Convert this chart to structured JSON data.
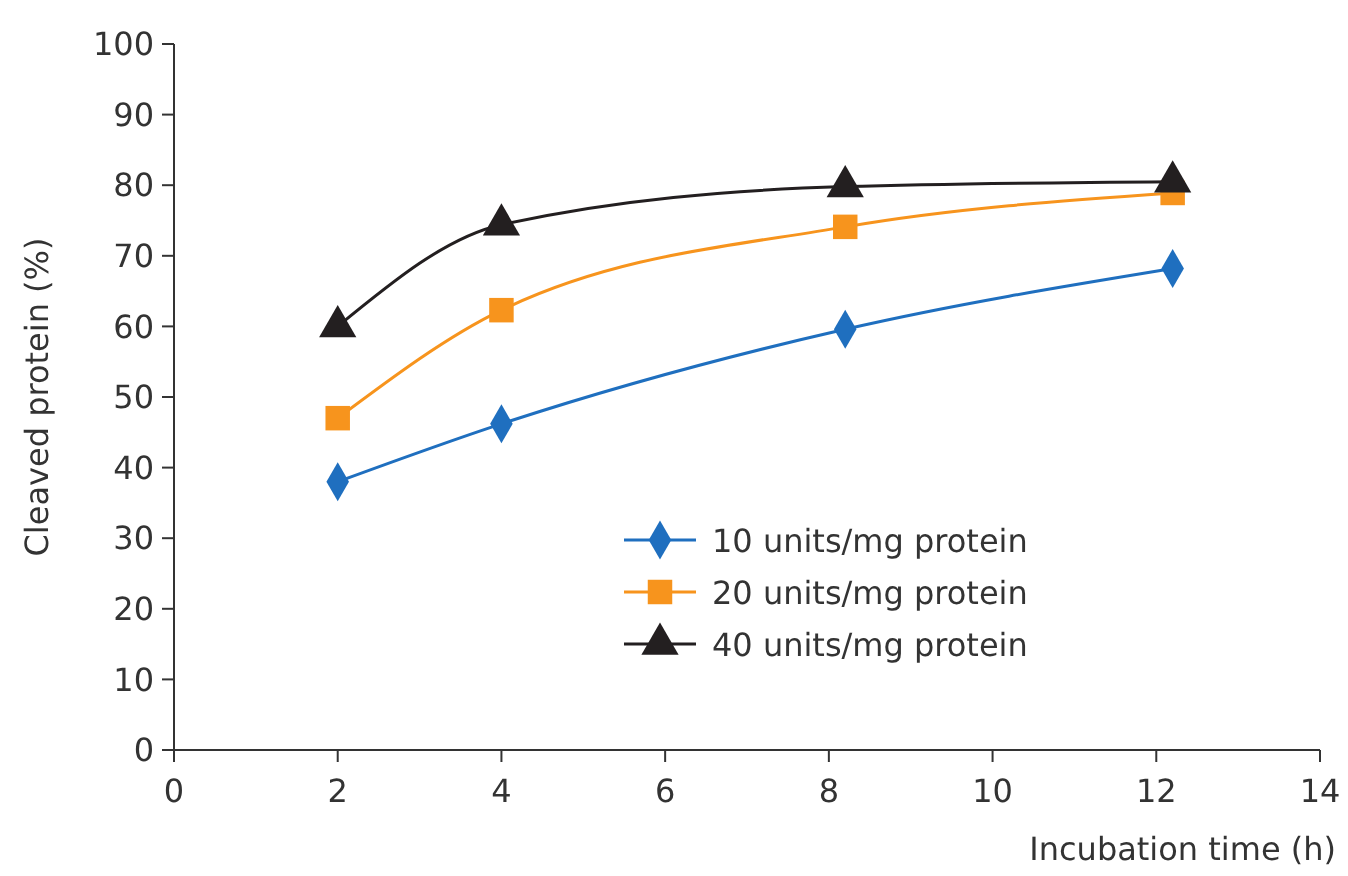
{
  "chart_data": {
    "type": "line",
    "xlabel": "Incubation time (h)",
    "ylabel": "Cleaved protein  (%)",
    "x": [
      2,
      4,
      8.2,
      12.2
    ],
    "series": [
      {
        "name": "10 units/mg protein",
        "color": "#1f6fbf",
        "marker": "diamond",
        "values": [
          38,
          46.2,
          59.6,
          68.2
        ]
      },
      {
        "name": "20 units/mg protein",
        "color": "#f7941d",
        "marker": "square",
        "values": [
          47,
          62.3,
          74.1,
          78.9
        ]
      },
      {
        "name": "40 units/mg protein",
        "color": "#231f20",
        "marker": "triangle",
        "values": [
          60,
          74.4,
          79.8,
          80.5
        ]
      }
    ],
    "xlim": [
      0,
      14
    ],
    "xticks": [
      0,
      2,
      4,
      6,
      8,
      10,
      12,
      14
    ],
    "ylim": [
      0,
      100
    ],
    "yticks": [
      0,
      10,
      20,
      30,
      40,
      50,
      60,
      70,
      80,
      90,
      100
    ],
    "grid": false,
    "legend": "bottom right"
  }
}
